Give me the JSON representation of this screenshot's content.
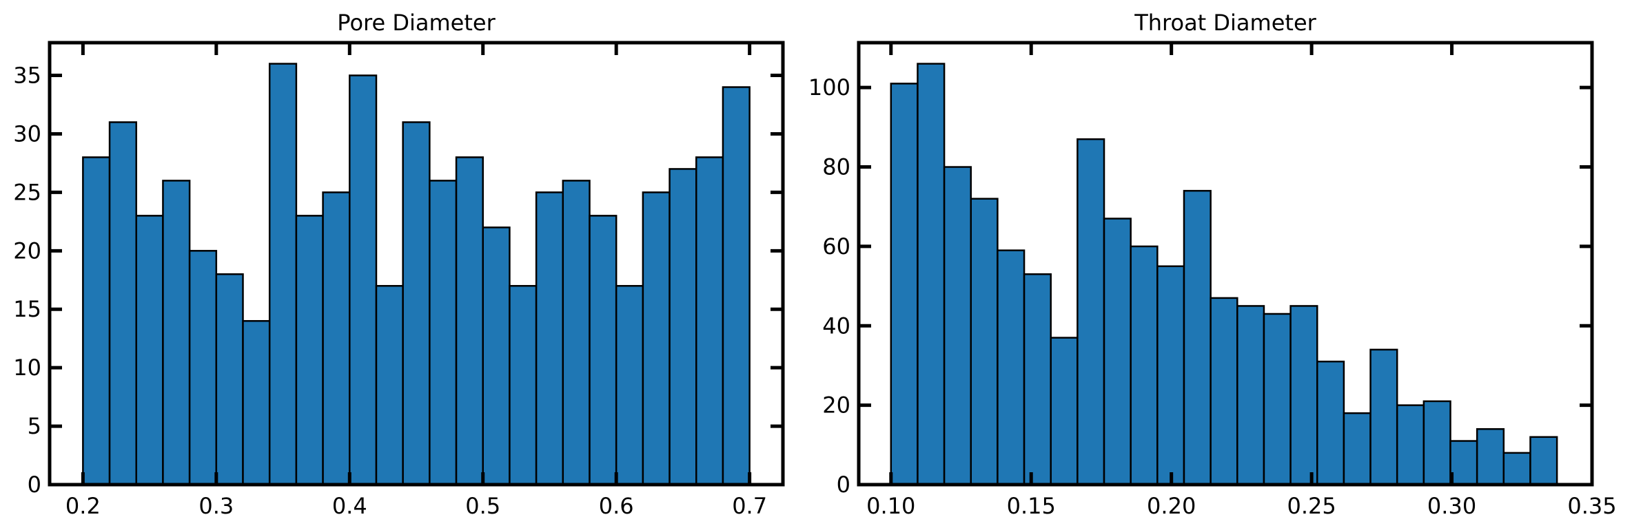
{
  "chart_data": [
    {
      "type": "bar",
      "title": "Pore Diameter",
      "xlabel": "",
      "ylabel": "",
      "bin_start": 0.2,
      "bin_width": 0.02,
      "values": [
        28,
        31,
        23,
        26,
        20,
        18,
        14,
        36,
        23,
        25,
        35,
        17,
        31,
        26,
        28,
        22,
        17,
        25,
        26,
        23,
        17,
        25,
        27,
        28,
        34
      ],
      "xlim": [
        0.175,
        0.725
      ],
      "ylim": [
        0,
        37.8
      ],
      "xticks": [
        0.2,
        0.3,
        0.4,
        0.5,
        0.6,
        0.7
      ],
      "xtick_labels": [
        "0.2",
        "0.3",
        "0.4",
        "0.5",
        "0.6",
        "0.7"
      ],
      "yticks": [
        0,
        5,
        10,
        15,
        20,
        25,
        30,
        35
      ],
      "ytick_labels": [
        "0",
        "5",
        "10",
        "15",
        "20",
        "25",
        "30",
        "35"
      ],
      "grid": false,
      "bar_color": "#1f77b4",
      "edge_color": "#000000"
    },
    {
      "type": "bar",
      "title": "Throat Diameter",
      "xlabel": "",
      "ylabel": "",
      "bin_start": 0.1,
      "bin_width": 0.0095,
      "values": [
        101,
        106,
        80,
        72,
        59,
        53,
        37,
        87,
        67,
        60,
        55,
        74,
        47,
        45,
        43,
        45,
        31,
        18,
        34,
        20,
        21,
        11,
        14,
        8,
        12
      ],
      "xlim": [
        0.0885,
        0.35
      ],
      "ylim": [
        0,
        111.3
      ],
      "xticks": [
        0.1,
        0.15,
        0.2,
        0.25,
        0.3,
        0.35
      ],
      "xtick_labels": [
        "0.10",
        "0.15",
        "0.20",
        "0.25",
        "0.30",
        "0.35"
      ],
      "yticks": [
        0,
        20,
        40,
        60,
        80,
        100
      ],
      "ytick_labels": [
        "0",
        "20",
        "40",
        "60",
        "80",
        "100"
      ],
      "grid": false,
      "bar_color": "#1f77b4",
      "edge_color": "#000000"
    }
  ]
}
